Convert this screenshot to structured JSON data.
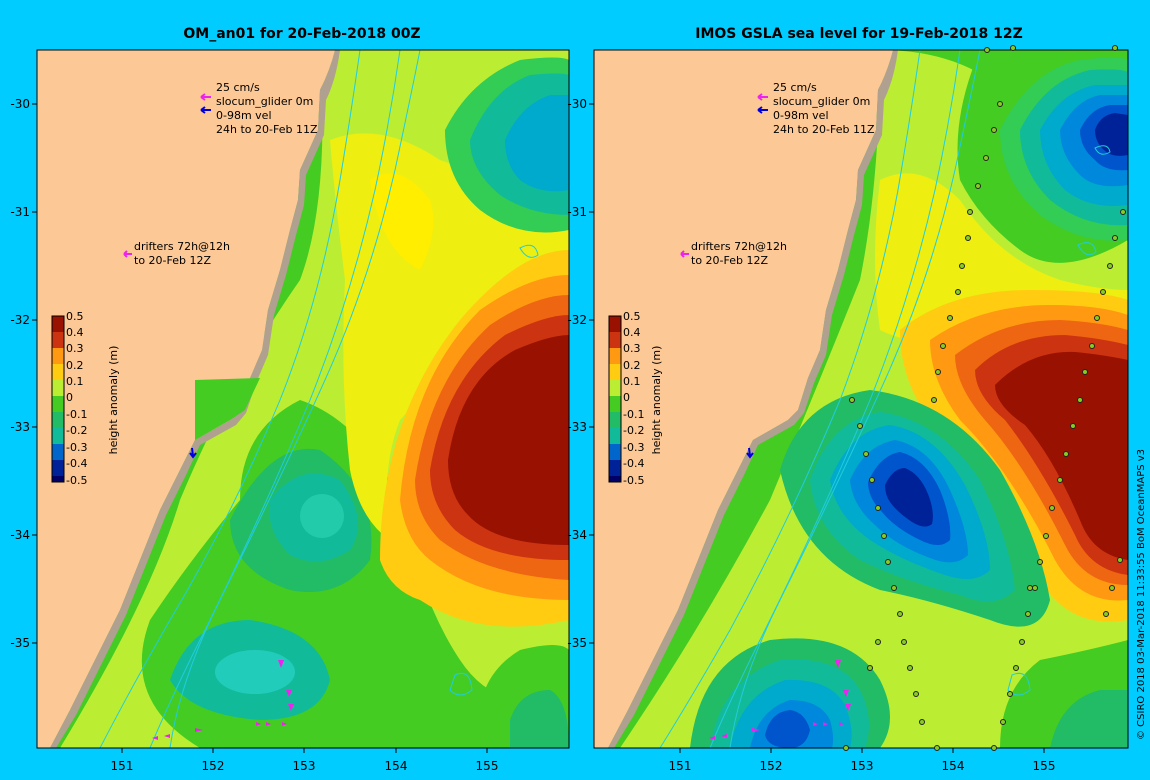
{
  "panels": [
    {
      "title": "OM_an01 for 20-Feb-2018 00Z",
      "legend": {
        "arrow_label": "25 cm/s",
        "glider_label": "slocum_glider 0m",
        "vel_label": "0-98m vel",
        "time_label": "24h to 20-Feb 11Z",
        "drifter_label_1": "drifters 72h@12h",
        "drifter_label_2": "to 20-Feb 12Z"
      }
    },
    {
      "title": "IMOS GSLA sea level  for 19-Feb-2018 12Z",
      "legend": {
        "arrow_label": "25 cm/s",
        "glider_label": "slocum_glider 0m",
        "vel_label": "0-98m vel",
        "time_label": "24h to 20-Feb 11Z",
        "drifter_label_1": "drifters 72h@12h",
        "drifter_label_2": "to 20-Feb 12Z"
      }
    }
  ],
  "axes": {
    "lon_ticks": [
      "151",
      "152",
      "153",
      "154",
      "155"
    ],
    "lat_ticks": [
      "-30",
      "-31",
      "-32",
      "-33",
      "-34",
      "-35"
    ]
  },
  "colorbar": {
    "label": "height anomaly (m)",
    "ticks": [
      "0.5",
      "0.4",
      "0.3",
      "0.2",
      "0.1",
      "0",
      "-0.1",
      "-0.2",
      "-0.3",
      "-0.4",
      "-0.5"
    ],
    "range": [
      -0.5,
      0.5
    ]
  },
  "credit": "© CSIRO 2018   03-Mar-2018 11:33:55 BoM OceanMAPS v3",
  "colors": {
    "background": "#00ccff",
    "land": "#fcc896",
    "coast": "#b0a090",
    "isobath": "#22ccdd",
    "drifter": "#ee22ee",
    "glider": "#0000dd"
  }
}
